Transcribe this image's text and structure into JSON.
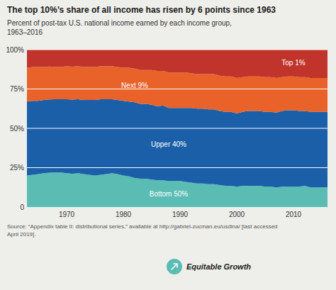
{
  "chart_data": {
    "type": "area",
    "stacked": true,
    "title": "The top 10%’s share of all income has risen by 6 points since 1963",
    "subtitle": "Percent of post-tax U.S. national income earned by each income group,\n1963–2016",
    "source": "Source: “Appendix table II: distributional series,” available at http://gabriel-zucman.eu/usdina/  [last accessed\nApril 2019].",
    "annotations": [
      "Equitable Growth"
    ],
    "x": [
      1963,
      1964,
      1965,
      1966,
      1967,
      1968,
      1969,
      1970,
      1971,
      1972,
      1973,
      1974,
      1975,
      1976,
      1977,
      1978,
      1979,
      1980,
      1981,
      1982,
      1983,
      1984,
      1985,
      1986,
      1987,
      1988,
      1989,
      1990,
      1991,
      1992,
      1993,
      1994,
      1995,
      1996,
      1997,
      1998,
      1999,
      2000,
      2001,
      2002,
      2003,
      2004,
      2005,
      2006,
      2007,
      2008,
      2009,
      2010,
      2011,
      2012,
      2013,
      2014,
      2015,
      2016
    ],
    "series": [
      {
        "name": "Bottom 50%",
        "color": "#5bbcb4",
        "values": [
          20.0,
          20.5,
          21.0,
          21.5,
          21.8,
          22.0,
          22.0,
          21.5,
          21.2,
          21.5,
          21.0,
          20.5,
          20.0,
          20.5,
          21.0,
          21.5,
          21.0,
          20.0,
          19.5,
          18.5,
          18.0,
          18.0,
          17.5,
          17.0,
          17.0,
          16.5,
          16.5,
          16.5,
          16.0,
          15.5,
          15.0,
          15.0,
          14.5,
          14.5,
          14.0,
          13.5,
          13.5,
          13.0,
          13.5,
          13.5,
          13.5,
          13.5,
          13.0,
          13.0,
          12.5,
          13.0,
          13.0,
          13.0,
          13.0,
          13.5,
          12.5,
          12.5,
          12.5,
          12.5
        ]
      },
      {
        "name": "Upper 40%",
        "color": "#1a5fa8",
        "values": [
          47.0,
          47.0,
          46.5,
          46.5,
          46.5,
          46.5,
          46.5,
          47.0,
          47.0,
          47.0,
          47.0,
          47.5,
          48.0,
          48.0,
          47.5,
          47.0,
          47.0,
          47.5,
          47.5,
          48.0,
          47.5,
          47.5,
          47.5,
          47.0,
          47.5,
          46.5,
          46.5,
          46.5,
          47.0,
          47.5,
          47.5,
          47.5,
          47.5,
          47.5,
          47.0,
          47.0,
          47.0,
          46.5,
          47.0,
          47.5,
          47.5,
          47.5,
          47.5,
          47.5,
          47.5,
          48.0,
          48.5,
          48.5,
          48.0,
          47.5,
          48.0,
          48.0,
          48.0,
          48.0
        ]
      },
      {
        "name": "Next 9%",
        "color": "#e8622a",
        "values": [
          21.5,
          21.5,
          21.5,
          21.0,
          21.0,
          20.5,
          20.5,
          21.0,
          21.0,
          21.0,
          21.0,
          21.0,
          21.0,
          21.0,
          21.0,
          21.0,
          21.0,
          21.0,
          21.5,
          21.5,
          21.5,
          21.5,
          22.0,
          22.5,
          22.0,
          22.5,
          22.5,
          22.5,
          22.5,
          22.0,
          22.0,
          22.0,
          22.5,
          22.5,
          22.5,
          22.5,
          22.5,
          22.5,
          22.0,
          22.0,
          22.0,
          22.0,
          22.0,
          22.0,
          22.0,
          21.5,
          21.5,
          21.5,
          21.5,
          21.5,
          21.5,
          21.5,
          21.5,
          21.5
        ]
      },
      {
        "name": "Top 1%",
        "color": "#c0342c",
        "values": [
          11.5,
          11.0,
          11.0,
          11.0,
          10.7,
          11.0,
          11.0,
          10.5,
          10.8,
          10.5,
          11.0,
          11.0,
          11.0,
          10.5,
          10.5,
          10.5,
          11.0,
          11.5,
          11.5,
          12.0,
          13.0,
          13.0,
          13.0,
          13.5,
          13.5,
          14.5,
          14.5,
          14.5,
          14.5,
          15.0,
          15.5,
          15.5,
          15.5,
          15.5,
          16.5,
          17.0,
          17.0,
          18.0,
          17.5,
          17.0,
          17.0,
          17.0,
          17.5,
          17.5,
          18.0,
          17.5,
          17.0,
          17.0,
          17.5,
          17.5,
          18.0,
          18.0,
          18.0,
          18.0
        ]
      }
    ],
    "xlim": [
      1963,
      2016
    ],
    "xticks": [
      1970,
      1980,
      1990,
      2000,
      2010
    ],
    "ylim": [
      0,
      100
    ],
    "yticks": [
      0,
      {
        "value": 25,
        "label": "25%"
      },
      {
        "value": 50,
        "label": "50%"
      },
      {
        "value": 75,
        "label": "75%"
      },
      {
        "value": 100,
        "label": "100%"
      }
    ],
    "grid": true
  }
}
